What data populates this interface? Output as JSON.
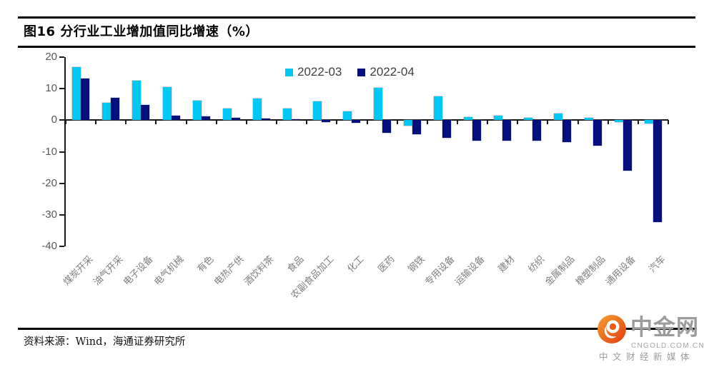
{
  "header": {
    "title": "图16 分行业工业增加值同比增速（%）"
  },
  "chart_data": {
    "type": "bar",
    "title": "分行业工业增加值同比增速（%）",
    "categories": [
      "煤炭开采",
      "油气开采",
      "电子设备",
      "电气机械",
      "有色",
      "电热产供",
      "酒饮料茶",
      "食品",
      "农副食品加工",
      "化工",
      "医药",
      "钢铁",
      "专用设备",
      "运输设备",
      "建材",
      "纺织",
      "金属制品",
      "橡塑制品",
      "通用设备",
      "汽车"
    ],
    "series": [
      {
        "name": "2022-03",
        "color": "#00C8F2",
        "values": [
          16.8,
          5.5,
          12.6,
          10.5,
          6.2,
          3.8,
          6.9,
          3.7,
          5.9,
          2.9,
          10.2,
          -1.8,
          7.5,
          1.0,
          1.5,
          0.8,
          2.1,
          0.8,
          -0.7,
          -1.0
        ]
      },
      {
        "name": "2022-04",
        "color": "#05107E",
        "values": [
          13.3,
          7.1,
          4.9,
          1.4,
          1.3,
          0.8,
          0.5,
          0.4,
          -0.5,
          -0.8,
          -4.0,
          -4.4,
          -5.6,
          -6.4,
          -6.4,
          -6.6,
          -6.9,
          -8.1,
          -16.0,
          -32.3
        ]
      }
    ],
    "ylim": [
      -40,
      20
    ],
    "yticks": [
      20,
      10,
      0,
      -10,
      -20,
      -30,
      -40
    ],
    "xlabel": "",
    "ylabel": "",
    "grid": false,
    "legend_position": "top-center"
  },
  "footer": {
    "source_text": "资料来源：Wind，海通证券研究所"
  },
  "logo": {
    "name": "中金网",
    "domain": "CNGOLD.COM.CN",
    "tagline": "中文财经新媒体",
    "accent_color": "#E8450F"
  }
}
